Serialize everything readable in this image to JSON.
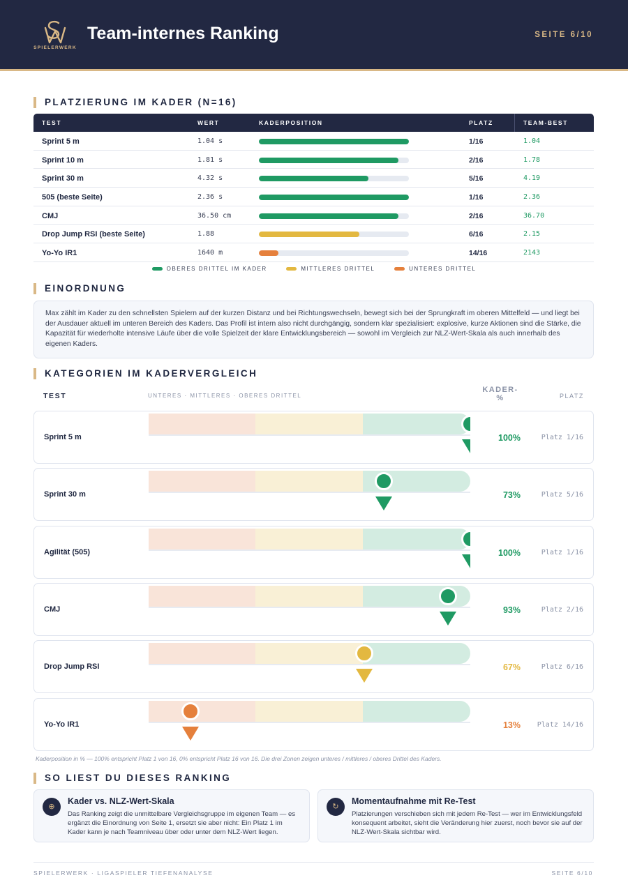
{
  "header": {
    "brand": "SPIELERWERK",
    "title": "Team-internes Ranking",
    "page": "SEITE 6/10"
  },
  "colors": {
    "navy": "#222842",
    "gold": "#d9b886",
    "green": "#1f9a63",
    "yellow": "#e3b840",
    "orange": "#e5803c"
  },
  "placement": {
    "heading": "PLATZIERUNG IM KADER (N=16)",
    "columns": {
      "test": "TEST",
      "value": "WERT",
      "position": "KADERPOSITION",
      "rank": "PLATZ",
      "best": "TEAM-BEST"
    },
    "rows": [
      {
        "test": "Sprint 5 m",
        "value": "1.04 s",
        "fill": 1.0,
        "tier": "green",
        "rank": "1/16",
        "best": "1.04"
      },
      {
        "test": "Sprint 10 m",
        "value": "1.81 s",
        "fill": 0.93,
        "tier": "green",
        "rank": "2/16",
        "best": "1.78"
      },
      {
        "test": "Sprint 30 m",
        "value": "4.32 s",
        "fill": 0.73,
        "tier": "green",
        "rank": "5/16",
        "best": "4.19"
      },
      {
        "test": "505 (beste Seite)",
        "value": "2.36 s",
        "fill": 1.0,
        "tier": "green",
        "rank": "1/16",
        "best": "2.36"
      },
      {
        "test": "CMJ",
        "value": "36.50 cm",
        "fill": 0.93,
        "tier": "green",
        "rank": "2/16",
        "best": "36.70"
      },
      {
        "test": "Drop Jump RSI (beste Seite)",
        "value": "1.88",
        "fill": 0.67,
        "tier": "yellow",
        "rank": "6/16",
        "best": "2.15"
      },
      {
        "test": "Yo-Yo IR1",
        "value": "1640 m",
        "fill": 0.13,
        "tier": "orange",
        "rank": "14/16",
        "best": "2143"
      }
    ],
    "legend": [
      {
        "label": "OBERES DRITTEL IM KADER",
        "tier": "green"
      },
      {
        "label": "MITTLERES DRITTEL",
        "tier": "yellow"
      },
      {
        "label": "UNTERES DRITTEL",
        "tier": "orange"
      }
    ]
  },
  "einordnung": {
    "heading": "EINORDNUNG",
    "text": "Max zählt im Kader zu den schnellsten Spielern auf der kurzen Distanz und bei Richtungswechseln, bewegt sich bei der Sprungkraft im oberen Mittelfeld — und liegt bei der Ausdauer aktuell im unteren Bereich des Kaders. Das Profil ist intern also nicht durchgängig, sondern klar spezialisiert: explosive, kurze Aktionen sind die Stärke, die Kapazität für wiederholte intensive Läufe über die volle Spielzeit der klare Entwicklungsbereich — sowohl im Vergleich zur NLZ-Wert-Skala als auch innerhalb des eigenen Kaders."
  },
  "categories": {
    "heading": "KATEGORIEN IM KADERVERGLEICH",
    "col_test": "TEST",
    "col_zones": "UNTERES · MITTLERES · OBERES DRITTEL",
    "col_pct": "KADER-%",
    "col_rank": "PLATZ",
    "rows": [
      {
        "test": "Sprint 5 m",
        "percent": 100,
        "pct_label": "100%",
        "rank": "Platz 1/16",
        "tier": "green"
      },
      {
        "test": "Sprint 30 m",
        "percent": 73,
        "pct_label": "73%",
        "rank": "Platz 5/16",
        "tier": "green"
      },
      {
        "test": "Agilität (505)",
        "percent": 100,
        "pct_label": "100%",
        "rank": "Platz 1/16",
        "tier": "green"
      },
      {
        "test": "CMJ",
        "percent": 93,
        "pct_label": "93%",
        "rank": "Platz 2/16",
        "tier": "green"
      },
      {
        "test": "Drop Jump RSI",
        "percent": 67,
        "pct_label": "67%",
        "rank": "Platz 6/16",
        "tier": "yellow"
      },
      {
        "test": "Yo-Yo IR1",
        "percent": 13,
        "pct_label": "13%",
        "rank": "Platz 14/16",
        "tier": "orange"
      }
    ],
    "footnote": "Kaderposition in % — 100% entspricht Platz 1 von 16, 0% entspricht Platz 16 von 16. Die drei Zonen zeigen unteres / mittleres / oberes Drittel des Kaders."
  },
  "howto": {
    "heading": "SO LIEST DU DIESES RANKING",
    "cards": [
      {
        "icon": "compass-icon",
        "glyph": "⊕",
        "title": "Kader vs. NLZ-Wert-Skala",
        "text": "Das Ranking zeigt die unmittelbare Vergleichsgruppe im eigenen Team — es ergänzt die Einordnung von Seite 1, ersetzt sie aber nicht: Ein Platz 1 im Kader kann je nach Teamniveau über oder unter dem NLZ-Wert liegen."
      },
      {
        "icon": "refresh-icon",
        "glyph": "↻",
        "title": "Momentaufnahme mit Re-Test",
        "text": "Platzierungen verschieben sich mit jedem Re-Test — wer im Entwicklungsfeld konsequent arbeitet, sieht die Veränderung hier zuerst, noch bevor sie auf der NLZ-Wert-Skala sichtbar wird."
      }
    ]
  },
  "footer": {
    "left": "SPIELERWERK · LIGASPIELER TIEFENANALYSE",
    "right": "SEITE 6/10"
  }
}
